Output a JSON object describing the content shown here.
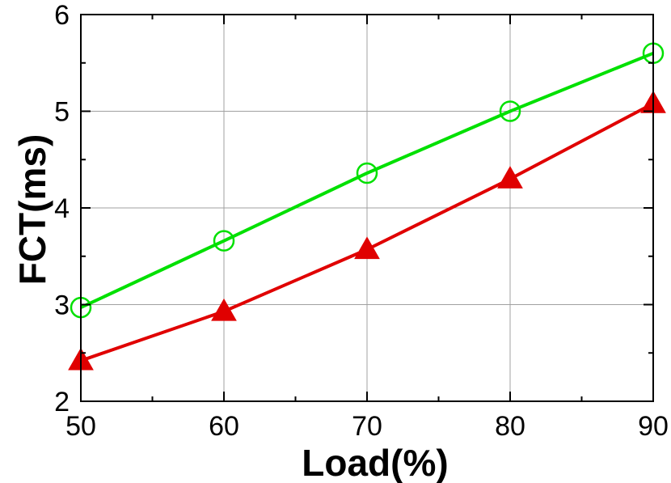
{
  "chart_data": {
    "type": "line",
    "xlabel": "Load(%)",
    "ylabel": "FCT(ms)",
    "xlim": [
      50,
      90
    ],
    "ylim": [
      2,
      6
    ],
    "xticks": [
      50,
      60,
      70,
      80,
      90
    ],
    "yticks": [
      2,
      3,
      4,
      5,
      6
    ],
    "grid": true,
    "series": [
      {
        "color": "#00e000",
        "marker": "circle-open",
        "x": [
          50,
          60,
          70,
          80,
          90
        ],
        "y": [
          2.97,
          3.66,
          4.36,
          5.0,
          5.6
        ]
      },
      {
        "color": "#e00000",
        "marker": "triangle-filled",
        "x": [
          50,
          60,
          70,
          80,
          90
        ],
        "y": [
          2.42,
          2.93,
          3.57,
          4.3,
          5.08
        ]
      }
    ]
  }
}
